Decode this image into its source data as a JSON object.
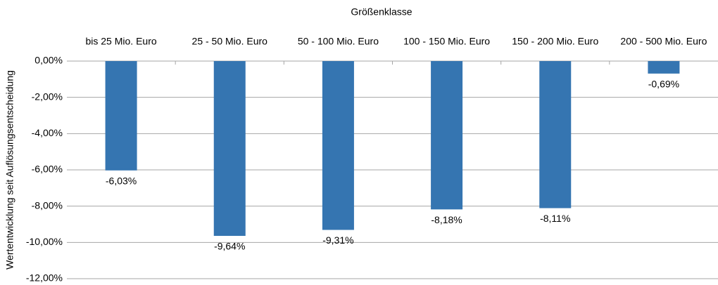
{
  "chart_data": {
    "type": "bar",
    "x_label": "Größenklasse",
    "y_label": "Wertentwicklung seit Auflösungsentscheidung",
    "categories": [
      "bis 25 Mio. Euro",
      "25 - 50 Mio. Euro",
      "50 - 100 Mio. Euro",
      "100 - 150 Mio. Euro",
      "150 - 200 Mio. Euro",
      "200 - 500 Mio. Euro"
    ],
    "values": [
      -6.03,
      -9.64,
      -9.31,
      -8.18,
      -8.11,
      -0.69
    ],
    "value_labels": [
      "-6,03%",
      "-9,64%",
      "-9,31%",
      "-8,18%",
      "-8,11%",
      "-0,69%"
    ],
    "color": "#3575b1",
    "ylim": [
      -12,
      0
    ],
    "yticks": [
      {
        "value": 0,
        "label": "0,00%"
      },
      {
        "value": -2,
        "label": "-2,00%"
      },
      {
        "value": -4,
        "label": "-4,00%"
      },
      {
        "value": -6,
        "label": "-6,00%"
      },
      {
        "value": -8,
        "label": "-8,00%"
      },
      {
        "value": -10,
        "label": "-10,00%"
      },
      {
        "value": -12,
        "label": "-12,00%"
      }
    ],
    "grid": true
  }
}
